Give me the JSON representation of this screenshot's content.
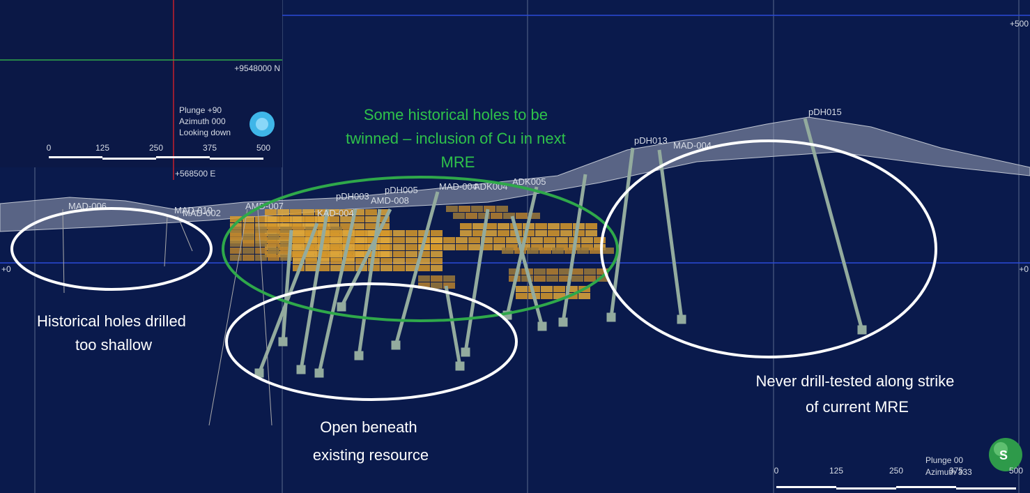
{
  "inset": {
    "northing": "+9548000 N",
    "easting": "+568500 E",
    "plunge": "Plunge +90",
    "azimuth": "Azimuth 000",
    "view": "Looking down",
    "scale": [
      "0",
      "125",
      "250",
      "375",
      "500"
    ]
  },
  "section": {
    "elevation_top": "+500",
    "elevation_zero_left": "+0",
    "elevation_zero_right": "+0",
    "plunge": "Plunge 00",
    "azimuth": "Azimuth 333",
    "scale": [
      "0",
      "125",
      "250",
      "375",
      "500"
    ],
    "logo": "S"
  },
  "holes": [
    "MAD-006",
    "MAD-010",
    "MAD-002",
    "AMD-007",
    "KAD-004",
    "AMD-008",
    "pDH003",
    "pDH005",
    "MAD-004",
    "ADK004",
    "ADK005",
    "pDH013",
    "MAD-004",
    "pDH015"
  ],
  "annotations": {
    "twinned": [
      "Some historical holes to be",
      "twinned – inclusion of Cu in next",
      "MRE"
    ],
    "shallow": [
      "Historical holes drilled",
      "too shallow"
    ],
    "open": [
      "Open beneath",
      "existing resource"
    ],
    "strike": [
      "Never drill-tested along strike",
      "of current MRE"
    ]
  }
}
